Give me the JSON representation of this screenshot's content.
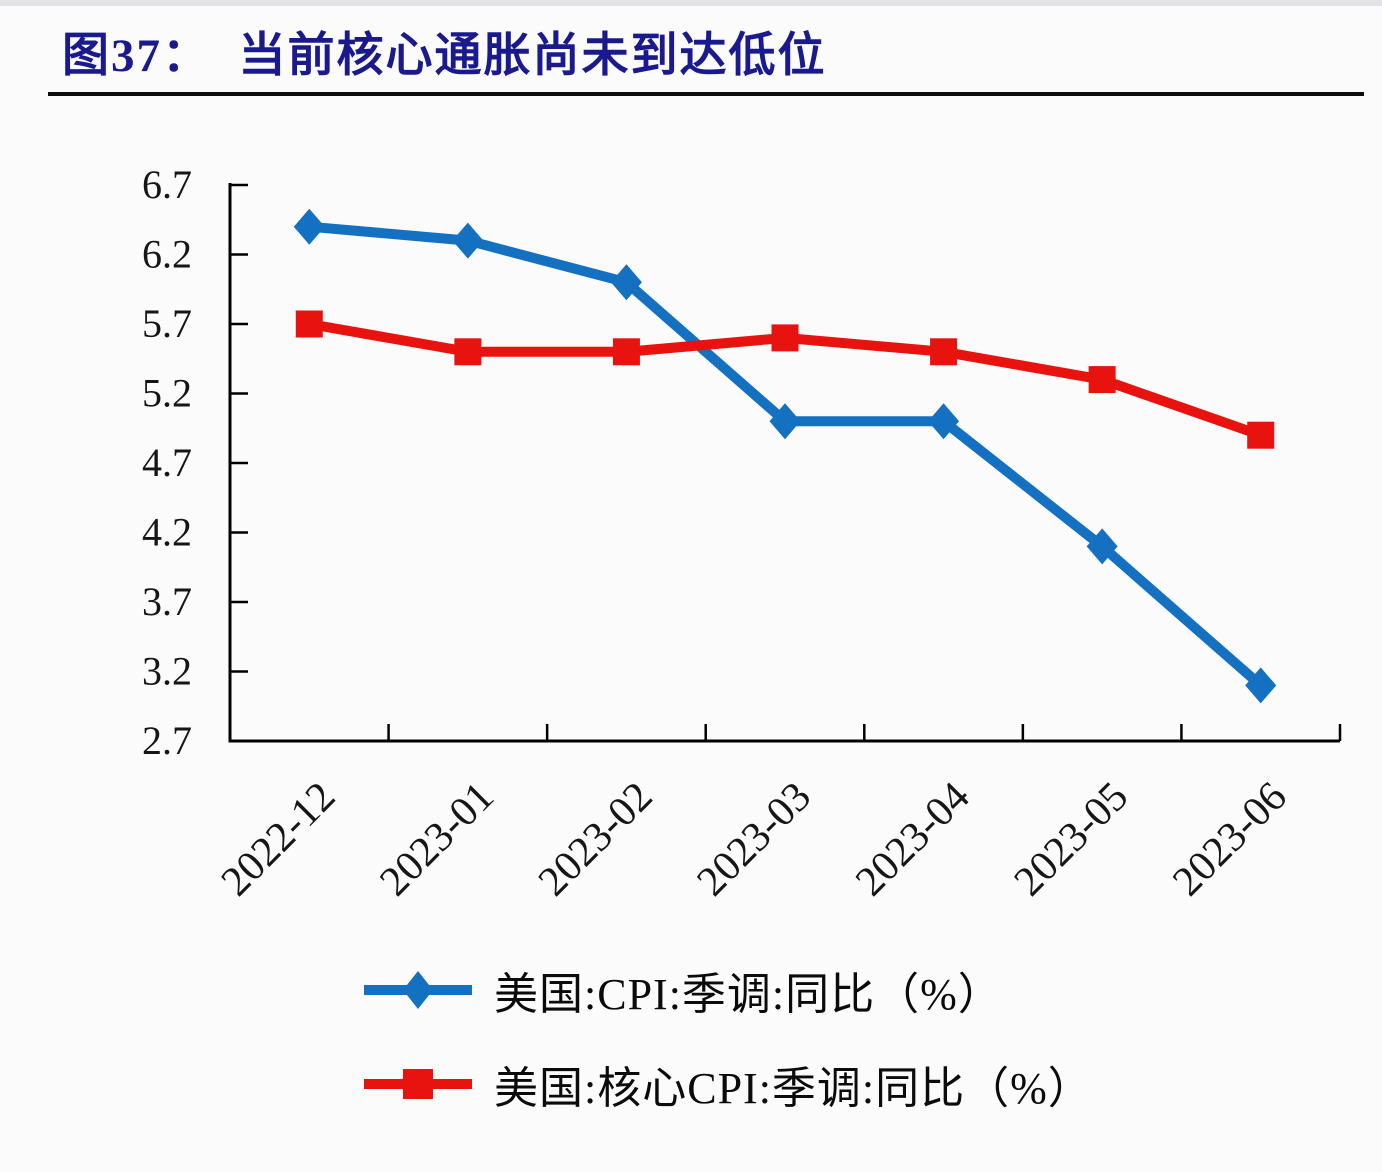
{
  "page": {
    "background_color": "#fbfbfc",
    "rule_color": "#0c0c0c"
  },
  "header": {
    "title": "图37：  当前核心通胀尚未到达低位",
    "title_color": "#1a1a8e"
  },
  "chart_data": {
    "type": "line",
    "title": "当前核心通胀尚未到达低位",
    "categories": [
      "2022-12",
      "2023-01",
      "2023-02",
      "2023-03",
      "2023-04",
      "2023-05",
      "2023-06"
    ],
    "series": [
      {
        "name": "美国:CPI:季调:同比（%）",
        "color": "#1470c0",
        "marker": "diamond",
        "values": [
          6.4,
          6.3,
          6.0,
          5.0,
          5.0,
          4.1,
          3.1
        ]
      },
      {
        "name": "美国:核心CPI:季调:同比（%）",
        "color": "#e8120f",
        "marker": "square",
        "values": [
          5.7,
          5.5,
          5.5,
          5.6,
          5.5,
          5.3,
          4.9
        ]
      }
    ],
    "xlabel": "",
    "ylabel": "",
    "ylim": [
      2.7,
      6.7
    ],
    "ytick_step": 0.5,
    "yticks": [
      "6.7",
      "6.2",
      "5.7",
      "5.2",
      "4.7",
      "4.2",
      "3.7",
      "3.2",
      "2.7"
    ],
    "grid": false,
    "axis_color": "#000000",
    "tick_label_color": "#161616",
    "tick_direction": "in",
    "x_label_rotation_deg": -45,
    "legend_position": "bottom"
  }
}
